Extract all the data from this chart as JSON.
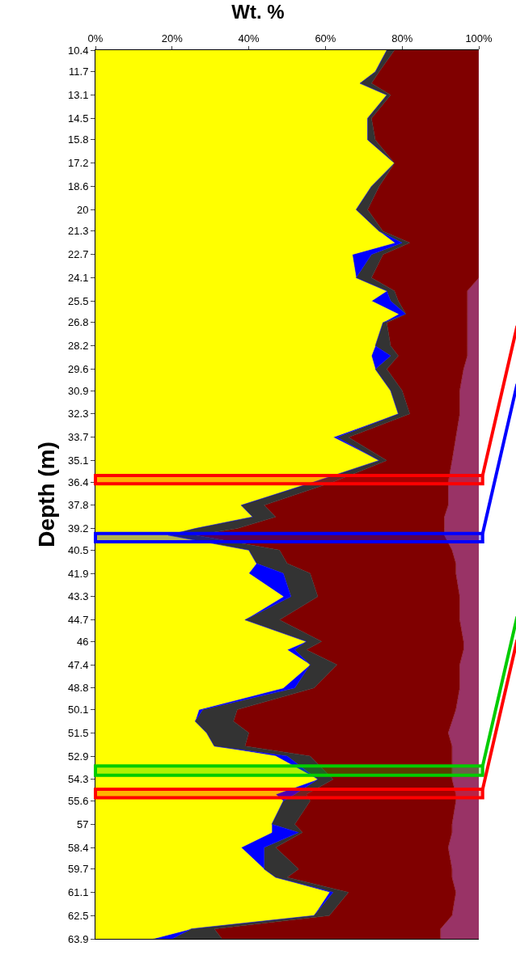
{
  "chart_data": {
    "type": "area",
    "title": "Wt. %",
    "ylabel": "Depth (m)",
    "orientation": "horizontal",
    "stacked": true,
    "x": [
      10.4,
      11.7,
      12.4,
      13.1,
      14.5,
      15.8,
      17.2,
      18.6,
      20,
      21.3,
      22.0,
      22.7,
      24.1,
      24.9,
      25.5,
      26.3,
      26.8,
      28.2,
      28.8,
      29.6,
      30.9,
      32.3,
      33.7,
      35.1,
      36.4,
      37.8,
      38.5,
      39.2,
      39.6,
      40.5,
      41.3,
      41.9,
      43.3,
      44.7,
      46,
      46.5,
      47.4,
      48.8,
      50.1,
      50.8,
      51.5,
      52.3,
      52.9,
      54.3,
      55.2,
      55.6,
      57,
      57.5,
      58.4,
      59.7,
      60.2,
      61.1,
      62.5,
      63.3,
      63.9
    ],
    "series": [
      {
        "color": "#ffff00",
        "values": [
          76,
          73,
          69,
          76,
          71,
          71,
          78,
          72,
          68,
          74,
          78,
          67,
          68,
          76,
          72,
          79,
          75,
          73,
          72,
          73,
          77,
          79,
          62,
          74,
          57,
          38,
          41,
          26,
          19,
          40,
          42,
          40,
          49,
          39,
          55,
          50,
          56,
          49,
          27,
          26,
          29,
          31,
          47,
          58,
          47,
          49,
          46,
          46,
          38,
          44,
          47,
          61,
          57,
          25,
          15
        ]
      },
      {
        "color": "#0000ff",
        "values": [
          0,
          0,
          0,
          0,
          0,
          0,
          0,
          0,
          0,
          0,
          2,
          5,
          0,
          0,
          5,
          2,
          0,
          0,
          5,
          0,
          0,
          0,
          1,
          0,
          0,
          0,
          0,
          0,
          0,
          0,
          0,
          9,
          2,
          0,
          0,
          2,
          0,
          3,
          1,
          0,
          0,
          0,
          3,
          0,
          5,
          0,
          0,
          7,
          6,
          0,
          0,
          1,
          0,
          0,
          5
        ]
      },
      {
        "color": "#333333",
        "values": [
          2,
          1,
          3,
          1,
          1,
          2,
          0,
          2,
          3,
          1,
          2,
          3,
          4,
          2,
          2,
          0,
          1,
          4,
          2,
          3,
          3,
          3,
          3,
          2,
          5,
          6,
          6,
          11,
          7,
          8,
          8,
          7,
          7,
          9,
          4,
          3,
          7,
          5,
          9,
          10,
          11,
          8,
          6,
          4,
          3,
          7,
          6,
          1,
          3,
          9,
          3,
          4,
          4,
          6,
          13
        ]
      },
      {
        "color": "#800000",
        "values": [
          22,
          26,
          28,
          23,
          28,
          27,
          22,
          26,
          29,
          25,
          18,
          25,
          28,
          19,
          18,
          16,
          21,
          20,
          18,
          20,
          15,
          13,
          28,
          17,
          30,
          48,
          44,
          54,
          65,
          45,
          44,
          38,
          37,
          47,
          37,
          41,
          32,
          38,
          57,
          57,
          52,
          54,
          37,
          31,
          39,
          38,
          41,
          39,
          45,
          40,
          43,
          28,
          32,
          59,
          57
        ]
      },
      {
        "color": "#993366",
        "values": [
          0,
          0,
          0,
          0,
          0,
          0,
          0,
          0,
          0,
          0,
          0,
          0,
          0,
          3,
          3,
          3,
          3,
          3,
          3,
          4,
          5,
          5,
          6,
          7,
          8,
          8,
          9,
          9,
          9,
          7,
          6,
          6,
          5,
          5,
          4,
          4,
          5,
          5,
          6,
          7,
          8,
          7,
          7,
          7,
          6,
          6,
          7,
          7,
          8,
          7,
          7,
          6,
          7,
          10,
          10
        ]
      }
    ],
    "xlim": [
      0,
      100
    ],
    "xticks": [
      {
        "value": 0,
        "label": "0%"
      },
      {
        "value": 20,
        "label": "20%"
      },
      {
        "value": 40,
        "label": "40%"
      },
      {
        "value": 60,
        "label": "60%"
      },
      {
        "value": 80,
        "label": "80%"
      },
      {
        "value": 100,
        "label": "100%"
      }
    ],
    "ylim": [
      63.9,
      10.4
    ],
    "yticks": [
      10.4,
      11.7,
      13.1,
      14.5,
      15.8,
      17.2,
      18.6,
      20,
      21.3,
      22.7,
      24.1,
      25.5,
      26.8,
      28.2,
      29.6,
      30.9,
      32.3,
      33.7,
      35.1,
      36.4,
      37.8,
      39.2,
      40.5,
      41.9,
      43.3,
      44.7,
      46,
      47.4,
      48.8,
      50.1,
      51.5,
      52.9,
      54.3,
      55.6,
      57,
      58.4,
      59.7,
      61.1,
      62.5,
      63.9
    ],
    "bands": [
      {
        "axis": "y",
        "from": 36.0,
        "to": 36.5,
        "color": "#ff0000"
      },
      {
        "axis": "y",
        "from": 39.5,
        "to": 40.0,
        "color": "#0000ff"
      },
      {
        "axis": "y",
        "from": 53.5,
        "to": 54.05,
        "color": "#00cc00"
      },
      {
        "axis": "y",
        "from": 54.9,
        "to": 55.4,
        "color": "#ff0000"
      }
    ]
  }
}
